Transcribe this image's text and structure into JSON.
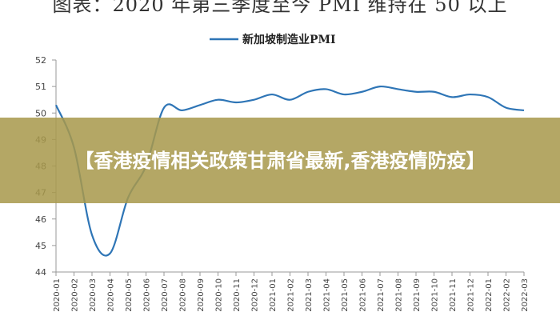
{
  "page": {
    "top_title": "图表：2020 年第三季度至今 PMI 维持在 50 以上",
    "banner_title": "【香港疫情相关政策甘肃省最新,香港疫情防疫】"
  },
  "colors": {
    "line": "#2e75b6",
    "banner": "#a8984c",
    "axis": "#999999",
    "text": "#444444"
  },
  "chart_data": {
    "type": "line",
    "title": "",
    "xlabel": "",
    "ylabel": "",
    "ylim": [
      44,
      52
    ],
    "yticks": [
      44,
      45,
      46,
      47,
      48,
      49,
      50,
      51,
      52
    ],
    "grid": false,
    "legend_position": "top-center",
    "x": [
      "2020-01",
      "2020-02",
      "2020-03",
      "2020-04",
      "2020-05",
      "2020-06",
      "2020-07",
      "2020-08",
      "2020-09",
      "2020-10",
      "2020-11",
      "2020-12",
      "2021-01",
      "2021-02",
      "2021-03",
      "2021-04",
      "2021-05",
      "2021-06",
      "2021-07",
      "2021-08",
      "2021-09",
      "2021-10",
      "2021-11",
      "2021-12",
      "2022-01",
      "2022-02",
      "2022-03"
    ],
    "series": [
      {
        "name": "新加坡制造业PMI",
        "values": [
          50.3,
          48.7,
          45.4,
          44.7,
          46.8,
          48.0,
          50.2,
          50.1,
          50.3,
          50.5,
          50.4,
          50.5,
          50.7,
          50.5,
          50.8,
          50.9,
          50.7,
          50.8,
          51.0,
          50.9,
          50.8,
          50.8,
          50.6,
          50.7,
          50.6,
          50.2,
          50.1
        ]
      }
    ]
  }
}
